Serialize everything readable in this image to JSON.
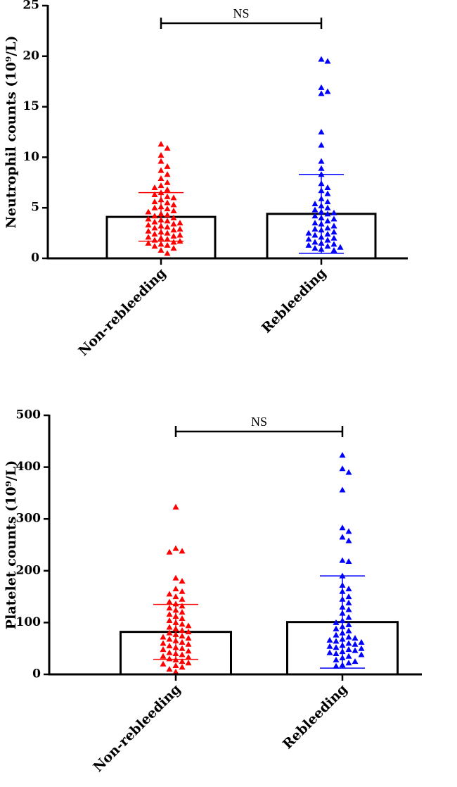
{
  "chart_data": [
    {
      "type": "bar",
      "ylabel": "Neutrophil counts (10⁹/L)",
      "annotation": "NS",
      "categories": [
        "Non-rebleeding",
        "Rebleeding"
      ],
      "values": [
        4.1,
        4.4
      ],
      "errors": [
        2.4,
        3.9
      ],
      "colors": [
        "#ff0000",
        "#0000ff"
      ],
      "points": [
        [
          11.3,
          10.9,
          10.2,
          9.6,
          9.1,
          8.7,
          8.3,
          7.9,
          7.5,
          7.2,
          7.0,
          6.8,
          6.5,
          6.3,
          6.1,
          6.0,
          5.8,
          5.6,
          5.5,
          5.3,
          5.1,
          5.0,
          4.9,
          4.7,
          4.6,
          4.4,
          4.3,
          4.2,
          4.0,
          3.9,
          3.8,
          3.7,
          3.6,
          3.5,
          3.4,
          3.3,
          3.2,
          3.1,
          3.0,
          2.9,
          2.8,
          2.7,
          2.6,
          2.5,
          2.4,
          2.3,
          2.2,
          2.1,
          2.0,
          1.9,
          1.8,
          1.7,
          1.6,
          1.5,
          1.4,
          1.3,
          1.2,
          1.0,
          0.8,
          0.5
        ],
        [
          19.7,
          19.5,
          16.9,
          16.5,
          16.3,
          12.5,
          11.2,
          9.6,
          8.9,
          8.3,
          7.4,
          7.0,
          6.7,
          6.4,
          5.9,
          5.6,
          5.4,
          5.2,
          5.0,
          4.8,
          4.6,
          4.5,
          4.4,
          4.2,
          4.0,
          3.9,
          3.7,
          3.5,
          3.4,
          3.2,
          3.0,
          2.9,
          2.8,
          2.6,
          2.5,
          2.4,
          2.3,
          2.1,
          2.0,
          1.9,
          1.8,
          1.6,
          1.5,
          1.4,
          1.3,
          1.2,
          1.1,
          1.0,
          0.9,
          0.8
        ]
      ],
      "ylim": [
        0,
        25
      ],
      "yticks": [
        0,
        5,
        10,
        15,
        20,
        25
      ]
    },
    {
      "type": "bar",
      "ylabel": "Platelet counts (10⁹/L)",
      "annotation": "NS",
      "categories": [
        "Non-rebleeding",
        "Rebleeding"
      ],
      "values": [
        82,
        101
      ],
      "errors": [
        53,
        89
      ],
      "colors": [
        "#ff0000",
        "#0000ff"
      ],
      "points": [
        [
          323,
          243,
          238,
          236,
          186,
          180,
          165,
          160,
          155,
          150,
          145,
          140,
          136,
          132,
          128,
          124,
          120,
          116,
          112,
          108,
          104,
          100,
          97,
          94,
          91,
          88,
          85,
          82,
          80,
          77,
          74,
          72,
          70,
          68,
          65,
          62,
          60,
          58,
          55,
          52,
          50,
          48,
          45,
          42,
          40,
          38,
          35,
          33,
          30,
          28,
          25,
          22,
          20,
          17,
          14,
          10,
          5
        ],
        [
          423,
          397,
          390,
          356,
          283,
          276,
          265,
          258,
          220,
          218,
          190,
          172,
          165,
          160,
          150,
          145,
          138,
          130,
          125,
          118,
          110,
          104,
          100,
          96,
          92,
          88,
          84,
          80,
          76,
          72,
          70,
          68,
          66,
          64,
          62,
          60,
          58,
          56,
          54,
          52,
          50,
          48,
          46,
          44,
          42,
          40,
          38,
          35,
          32,
          28,
          25,
          22,
          18,
          16
        ]
      ],
      "ylim": [
        0,
        500
      ],
      "yticks": [
        0,
        100,
        200,
        300,
        400,
        500
      ]
    }
  ]
}
